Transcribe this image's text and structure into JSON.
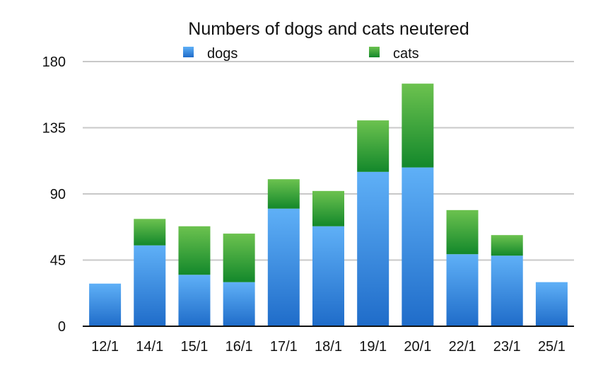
{
  "chart_data": {
    "type": "bar",
    "stacked": true,
    "title": "Numbers of dogs and cats neutered",
    "xlabel": "",
    "ylabel": "",
    "ylim": [
      0,
      180
    ],
    "yticks": [
      0,
      45,
      90,
      135,
      180
    ],
    "grid": true,
    "legend_position": "top",
    "categories": [
      "12/1",
      "14/1",
      "15/1",
      "16/1",
      "17/1",
      "18/1",
      "19/1",
      "20/1",
      "22/1",
      "23/1",
      "25/1"
    ],
    "series": [
      {
        "name": "dogs",
        "color": "#4a9cf0",
        "values": [
          29,
          55,
          35,
          30,
          80,
          68,
          105,
          108,
          49,
          48,
          30
        ]
      },
      {
        "name": "cats",
        "color": "#3fae3f",
        "values": [
          0,
          18,
          33,
          33,
          20,
          24,
          35,
          57,
          30,
          14,
          0
        ]
      }
    ]
  }
}
